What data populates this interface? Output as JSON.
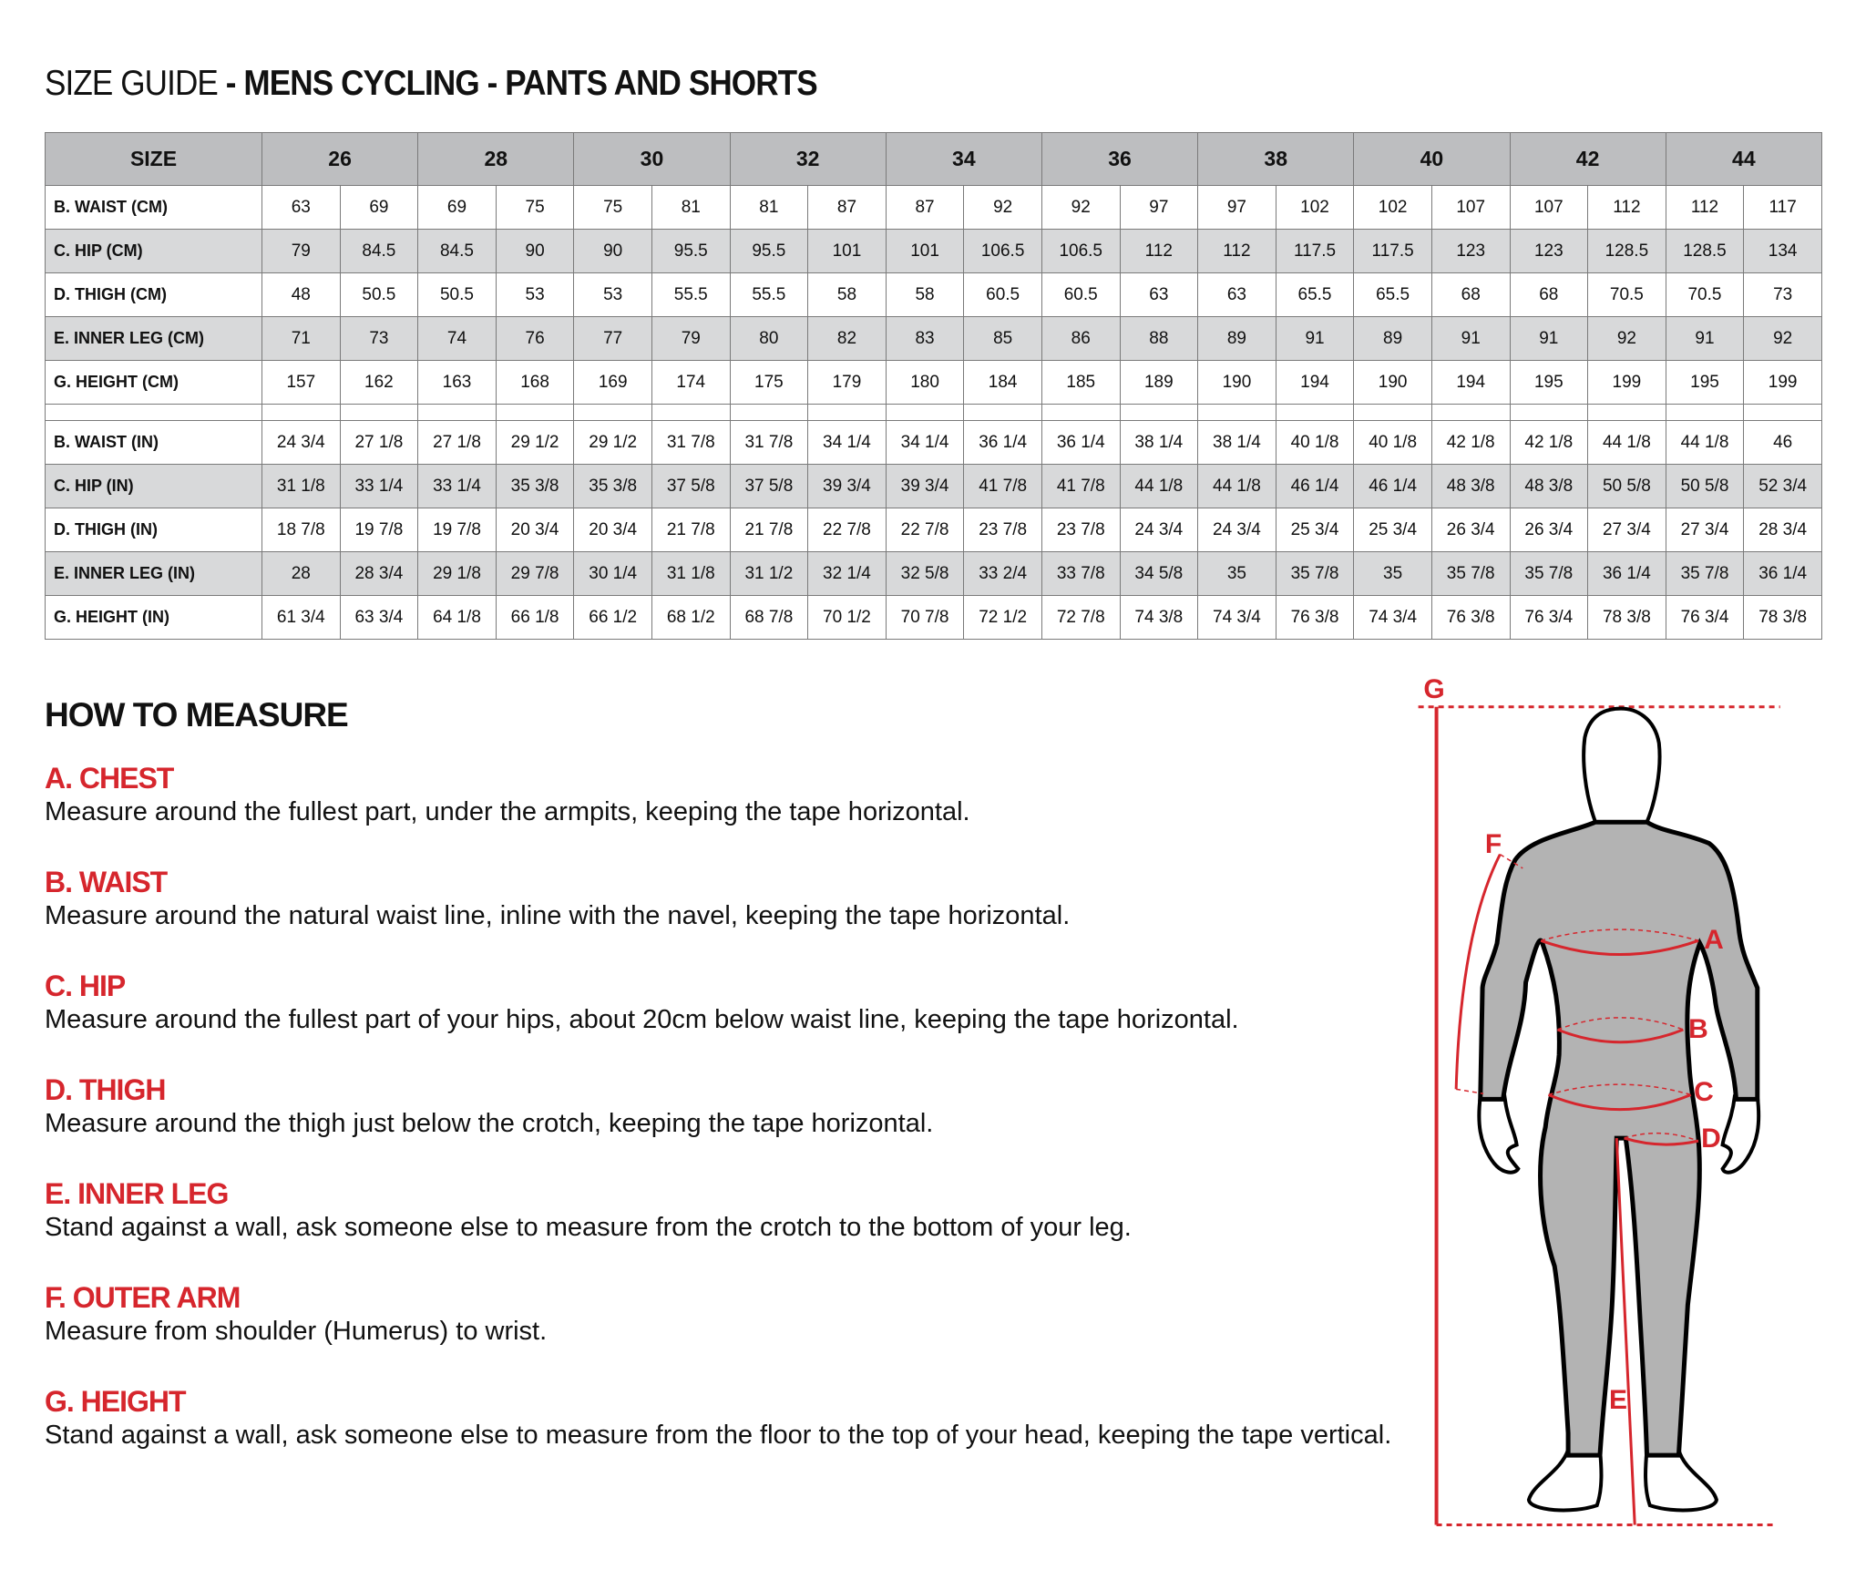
{
  "title": {
    "prefix": "SIZE GUIDE",
    "main": " - MENS CYCLING - PANTS AND SHORTS"
  },
  "table": {
    "size_label": "SIZE",
    "sizes": [
      "26",
      "28",
      "30",
      "32",
      "34",
      "36",
      "38",
      "40",
      "42",
      "44"
    ],
    "rows": [
      {
        "label": "B. WAIST (CM)",
        "values": [
          "63",
          "69",
          "69",
          "75",
          "75",
          "81",
          "81",
          "87",
          "87",
          "92",
          "92",
          "97",
          "97",
          "102",
          "102",
          "107",
          "107",
          "112",
          "112",
          "117"
        ]
      },
      {
        "label": "C. HIP (CM)",
        "values": [
          "79",
          "84.5",
          "84.5",
          "90",
          "90",
          "95.5",
          "95.5",
          "101",
          "101",
          "106.5",
          "106.5",
          "112",
          "112",
          "117.5",
          "117.5",
          "123",
          "123",
          "128.5",
          "128.5",
          "134"
        ]
      },
      {
        "label": "D. THIGH (CM)",
        "values": [
          "48",
          "50.5",
          "50.5",
          "53",
          "53",
          "55.5",
          "55.5",
          "58",
          "58",
          "60.5",
          "60.5",
          "63",
          "63",
          "65.5",
          "65.5",
          "68",
          "68",
          "70.5",
          "70.5",
          "73"
        ]
      },
      {
        "label": "E. INNER LEG (CM)",
        "values": [
          "71",
          "73",
          "74",
          "76",
          "77",
          "79",
          "80",
          "82",
          "83",
          "85",
          "86",
          "88",
          "89",
          "91",
          "89",
          "91",
          "91",
          "92",
          "91",
          "92"
        ]
      },
      {
        "label": "G. HEIGHT (CM)",
        "values": [
          "157",
          "162",
          "163",
          "168",
          "169",
          "174",
          "175",
          "179",
          "180",
          "184",
          "185",
          "189",
          "190",
          "194",
          "190",
          "194",
          "195",
          "199",
          "195",
          "199"
        ]
      },
      {
        "spacer": true
      },
      {
        "label": "B. WAIST (IN)",
        "values": [
          "24 3/4",
          "27 1/8",
          "27 1/8",
          "29 1/2",
          "29 1/2",
          "31 7/8",
          "31 7/8",
          "34 1/4",
          "34 1/4",
          "36 1/4",
          "36 1/4",
          "38 1/4",
          "38 1/4",
          "40 1/8",
          "40 1/8",
          "42 1/8",
          "42 1/8",
          "44 1/8",
          "44 1/8",
          "46"
        ]
      },
      {
        "label": "C. HIP (IN)",
        "values": [
          "31 1/8",
          "33 1/4",
          "33 1/4",
          "35 3/8",
          "35 3/8",
          "37 5/8",
          "37 5/8",
          "39 3/4",
          "39 3/4",
          "41 7/8",
          "41 7/8",
          "44 1/8",
          "44 1/8",
          "46 1/4",
          "46 1/4",
          "48 3/8",
          "48 3/8",
          "50 5/8",
          "50 5/8",
          "52 3/4"
        ]
      },
      {
        "label": "D. THIGH (IN)",
        "values": [
          "18 7/8",
          "19 7/8",
          "19 7/8",
          "20 3/4",
          "20 3/4",
          "21 7/8",
          "21 7/8",
          "22 7/8",
          "22 7/8",
          "23 7/8",
          "23 7/8",
          "24 3/4",
          "24 3/4",
          "25 3/4",
          "25 3/4",
          "26 3/4",
          "26 3/4",
          "27 3/4",
          "27 3/4",
          "28 3/4"
        ]
      },
      {
        "label": "E. INNER LEG (IN)",
        "values": [
          "28",
          "28 3/4",
          "29 1/8",
          "29 7/8",
          "30 1/4",
          "31 1/8",
          "31 1/2",
          "32 1/4",
          "32 5/8",
          "33 2/4",
          "33 7/8",
          "34 5/8",
          "35",
          "35 7/8",
          "35",
          "35 7/8",
          "35 7/8",
          "36 1/4",
          "35 7/8",
          "36 1/4"
        ]
      },
      {
        "label": "G. HEIGHT (IN)",
        "values": [
          "61 3/4",
          "63 3/4",
          "64 1/8",
          "66 1/8",
          "66 1/2",
          "68 1/2",
          "68 7/8",
          "70 1/2",
          "70 7/8",
          "72 1/2",
          "72 7/8",
          "74 3/8",
          "74 3/4",
          "76 3/8",
          "74 3/4",
          "76 3/8",
          "76 3/4",
          "78 3/8",
          "76 3/4",
          "78 3/8"
        ]
      }
    ]
  },
  "measure": {
    "heading": "HOW TO MEASURE",
    "items": [
      {
        "title": "A. CHEST",
        "text": "Measure around the fullest part, under the armpits, keeping the tape horizontal."
      },
      {
        "title": "B. WAIST",
        "text": "Measure around the natural waist line, inline with the navel, keeping the tape horizontal."
      },
      {
        "title": "C. HIP",
        "text": "Measure around the fullest part of your hips, about 20cm below waist line, keeping the tape horizontal."
      },
      {
        "title": "D. THIGH",
        "text": "Measure around the thigh just below the crotch, keeping the tape horizontal."
      },
      {
        "title": "E. INNER LEG",
        "text": "Stand against a wall, ask someone else to measure from the crotch to the bottom of your leg."
      },
      {
        "title": "F. OUTER ARM",
        "text": "Measure from shoulder (Humerus) to wrist."
      },
      {
        "title": "G. HEIGHT",
        "text": "Stand against a wall, ask someone else to measure from the floor to the top of your head, keeping the tape vertical."
      }
    ]
  },
  "figure": {
    "labels": {
      "g": "G",
      "f": "F",
      "a": "A",
      "b": "B",
      "c": "C",
      "d": "D",
      "e": "E"
    },
    "colors": {
      "accent": "#d6262d",
      "suit": "#b3b3b3"
    }
  }
}
